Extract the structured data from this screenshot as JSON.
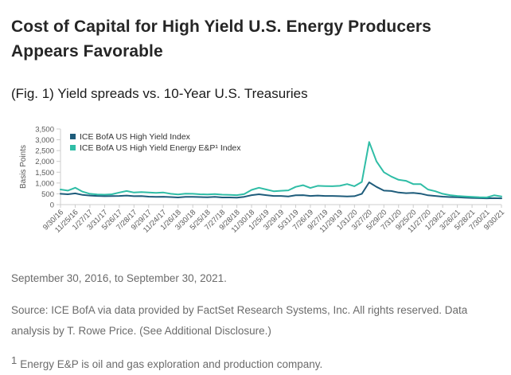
{
  "header": {
    "title_line1": "Cost of Capital for High Yield U.S. Energy Producers",
    "title_line2": "Appears Favorable"
  },
  "figure": {
    "caption": "(Fig. 1) Yield spreads vs. 10-Year U.S. Treasuries"
  },
  "chart_data": {
    "type": "line",
    "title": "",
    "xlabel": "",
    "ylabel": "Basis Points",
    "ylim": [
      0,
      3500
    ],
    "ytick_step": 500,
    "ytick_labels": [
      "0",
      "500",
      "1,000",
      "1,500",
      "2,000",
      "2,500",
      "3,000",
      "3,500"
    ],
    "grid": "off",
    "legend_position": "inside-top-left",
    "axis_color": "#cccccc",
    "tick_label_color": "#595959",
    "legend_text_color": "#333333",
    "x_tick_labels": [
      "9/30/16",
      "11/25/16",
      "1/27/17",
      "3/31/17",
      "5/26/17",
      "7/28/17",
      "9/29/17",
      "11/24/17",
      "1/26/18",
      "3/30/18",
      "5/25/18",
      "7/27/18",
      "9/28/18",
      "11/30/18",
      "1/25/19",
      "3/29/19",
      "5/31/19",
      "7/26/19",
      "9/27/19",
      "11/29/19",
      "1/31/20",
      "3/27/20",
      "5/29/20",
      "7/31/20",
      "9/25/20",
      "11/27/20",
      "1/29/21",
      "3/26/21",
      "5/28/21",
      "7/30/21",
      "9/30/21"
    ],
    "x_note": "monthly sample points, Sep 2016 to Sep 2021; tick labels fall on every second point",
    "series": [
      {
        "name": "ICE BofA US High Yield Index",
        "color": "#1e5c7b",
        "values": [
          500,
          480,
          520,
          450,
          420,
          400,
          390,
          395,
          400,
          420,
          390,
          395,
          370,
          360,
          365,
          350,
          330,
          360,
          360,
          350,
          340,
          360,
          330,
          330,
          320,
          360,
          440,
          480,
          440,
          400,
          400,
          380,
          430,
          440,
          400,
          420,
          400,
          400,
          390,
          380,
          390,
          500,
          1030,
          820,
          650,
          630,
          560,
          530,
          540,
          510,
          430,
          400,
          370,
          350,
          340,
          320,
          310,
          300,
          290,
          300,
          290
        ]
      },
      {
        "name": "ICE BofA US High Yield Energy E&P¹ Index",
        "color": "#2fbda6",
        "values": [
          700,
          650,
          780,
          600,
          500,
          470,
          460,
          480,
          560,
          630,
          560,
          580,
          560,
          540,
          560,
          500,
          470,
          510,
          500,
          480,
          470,
          490,
          460,
          450,
          440,
          490,
          680,
          780,
          700,
          620,
          640,
          660,
          820,
          900,
          770,
          870,
          860,
          850,
          870,
          950,
          850,
          1050,
          2900,
          2000,
          1500,
          1300,
          1150,
          1100,
          950,
          950,
          700,
          620,
          500,
          440,
          400,
          380,
          360,
          340,
          330,
          430,
          380
        ]
      }
    ]
  },
  "notes": {
    "date_range": "September 30, 2016, to September 30, 2021.",
    "source": "Source: ICE BofA via data provided by FactSet Research Systems, Inc. All rights reserved. Data analysis by T. Rowe Price. (See Additional Disclosure.)",
    "footnote_marker": "1",
    "footnote_text": "Energy E&P is oil and gas exploration and production company."
  }
}
